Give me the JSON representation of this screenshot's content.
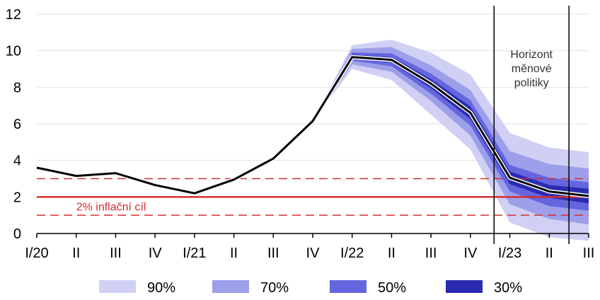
{
  "chart_data": {
    "type": "line",
    "categories": [
      "I/20",
      "II",
      "III",
      "IV",
      "I/21",
      "II",
      "III",
      "IV",
      "I/22",
      "II",
      "III",
      "IV",
      "I/23",
      "II",
      "III"
    ],
    "ylim": [
      0,
      12
    ],
    "yticks": [
      0,
      2,
      4,
      6,
      8,
      10,
      12
    ],
    "grid": true,
    "series": [
      {
        "values": [
          3.6,
          3.15,
          3.3,
          2.65,
          2.2,
          2.95,
          4.1,
          6.15,
          9.65,
          9.5,
          8.2,
          6.6,
          3.05,
          2.3,
          2.05
        ],
        "color": "#000000"
      }
    ],
    "fan_start_index": 7,
    "fan_bands": [
      {
        "name": "90%",
        "color": "#cfd0f4",
        "upper": [
          6.15,
          10.3,
          10.6,
          9.9,
          8.7,
          5.5,
          4.7,
          4.45
        ],
        "lower": [
          6.15,
          9.0,
          8.4,
          6.5,
          4.6,
          0.6,
          -0.2,
          -0.4
        ]
      },
      {
        "name": "70%",
        "color": "#9e9fea",
        "upper": [
          6.15,
          10.1,
          10.2,
          9.2,
          7.85,
          4.5,
          3.8,
          3.55
        ],
        "lower": [
          6.15,
          9.25,
          8.85,
          7.25,
          5.35,
          1.6,
          0.8,
          0.5
        ]
      },
      {
        "name": "50%",
        "color": "#6566de",
        "upper": [
          6.15,
          9.9,
          9.85,
          8.75,
          7.3,
          3.75,
          3.05,
          2.8
        ],
        "lower": [
          6.15,
          9.45,
          9.15,
          7.65,
          5.9,
          2.3,
          1.5,
          1.25
        ]
      },
      {
        "name": "30%",
        "color": "#2b2bb2",
        "upper": [
          6.15,
          9.8,
          9.65,
          8.45,
          6.95,
          3.4,
          2.65,
          2.45
        ],
        "lower": [
          6.15,
          9.55,
          9.35,
          7.95,
          6.25,
          2.7,
          1.95,
          1.65
        ]
      }
    ],
    "inflation_target": {
      "value": 2,
      "label": "2% inflační cíl",
      "upper_band": 3,
      "lower_band": 1,
      "color": "#d03030"
    },
    "horizon": {
      "label_lines": [
        "Horizont",
        "měnové",
        "politiky"
      ],
      "start_index": 11.6,
      "end_index": 13.5
    },
    "legend": {
      "placement": "bottom",
      "items": [
        "90%",
        "70%",
        "50%",
        "30%"
      ]
    }
  }
}
